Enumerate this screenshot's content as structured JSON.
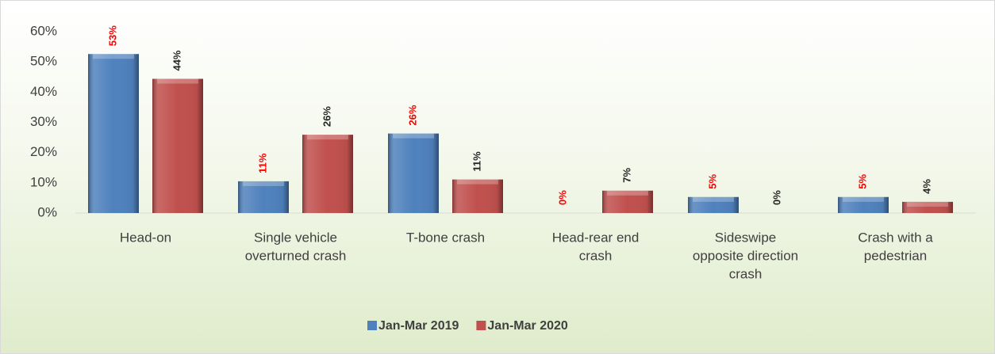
{
  "chart_data": {
    "type": "bar",
    "categories": [
      [
        "Head-on"
      ],
      [
        "Single vehicle",
        "overturned crash"
      ],
      [
        "T-bone crash"
      ],
      [
        "Head-rear end",
        "crash"
      ],
      [
        "Sideswipe",
        "opposite direction",
        "crash"
      ],
      [
        "Crash with a",
        "pedestrian"
      ]
    ],
    "series": [
      {
        "name": "Jan-Mar 2019",
        "color": "#4f81bd",
        "label_color": "#ff0000",
        "values": [
          52.6,
          10.5,
          26.3,
          0,
          5.3,
          5.3
        ],
        "value_labels": [
          "53%",
          "11%",
          "26%",
          "0%",
          "5%",
          "5%"
        ]
      },
      {
        "name": "Jan-Mar 2020",
        "color": "#c0504d",
        "label_color": "#262626",
        "values": [
          44.4,
          25.9,
          11.1,
          7.4,
          0,
          3.7
        ],
        "value_labels": [
          "44%",
          "26%",
          "11%",
          "7%",
          "0%",
          "4%"
        ]
      }
    ],
    "ylim": [
      0,
      60
    ],
    "yticks": [
      {
        "value": 0,
        "label": "0%"
      },
      {
        "value": 10,
        "label": "10%"
      },
      {
        "value": 20,
        "label": "20%"
      },
      {
        "value": 30,
        "label": "30%"
      },
      {
        "value": 40,
        "label": "40%"
      },
      {
        "value": 50,
        "label": "50%"
      },
      {
        "value": 60,
        "label": "60%"
      }
    ],
    "grid": false,
    "legend": "bottom"
  }
}
